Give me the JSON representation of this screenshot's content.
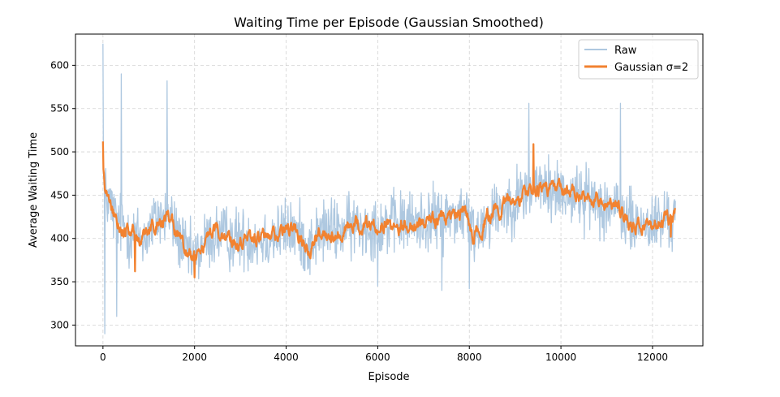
{
  "chart_data": {
    "type": "line",
    "title": "Waiting Time per Episode (Gaussian Smoothed)",
    "xlabel": "Episode",
    "ylabel": "Average Waiting Time",
    "xlim": [
      -600,
      13100
    ],
    "ylim": [
      276,
      636
    ],
    "xticks": [
      0,
      2000,
      4000,
      6000,
      8000,
      10000,
      12000
    ],
    "yticks": [
      300,
      350,
      400,
      450,
      500,
      550,
      600
    ],
    "grid": true,
    "legend_position": "top-right",
    "series": [
      {
        "name": "Raw",
        "color": "#aec8e0",
        "style": "thin-noisy",
        "anchor_x": [
          0,
          60,
          150,
          300,
          600,
          900,
          1200,
          1500,
          1800,
          2000,
          2200,
          2500,
          2800,
          3200,
          3600,
          4000,
          4300,
          4500,
          4800,
          5200,
          5600,
          6000,
          6500,
          7000,
          7500,
          7900,
          8100,
          8500,
          9000,
          9300,
          9500,
          9800,
          10000,
          10300,
          10700,
          11000,
          11300,
          11600,
          12000,
          12500
        ],
        "anchor_y": [
          480,
          450,
          440,
          420,
          405,
          400,
          425,
          420,
          385,
          375,
          395,
          405,
          400,
          400,
          400,
          410,
          405,
          390,
          410,
          410,
          415,
          415,
          418,
          420,
          425,
          430,
          405,
          430,
          445,
          455,
          460,
          455,
          455,
          450,
          445,
          440,
          430,
          415,
          415,
          425
        ],
        "noise_amplitude": 30,
        "extremes": [
          {
            "x": 0,
            "y": 625
          },
          {
            "x": 40,
            "y": 290
          },
          {
            "x": 300,
            "y": 310
          },
          {
            "x": 400,
            "y": 590
          },
          {
            "x": 1400,
            "y": 582
          },
          {
            "x": 6000,
            "y": 345
          },
          {
            "x": 7400,
            "y": 340
          },
          {
            "x": 8000,
            "y": 342
          },
          {
            "x": 9300,
            "y": 556
          },
          {
            "x": 11300,
            "y": 556
          }
        ]
      },
      {
        "name": "Gaussian σ=2",
        "color": "#f28230",
        "style": "thick-smoothed",
        "anchor_x": [
          0,
          60,
          150,
          300,
          600,
          900,
          1200,
          1500,
          1800,
          2000,
          2200,
          2500,
          2800,
          3200,
          3600,
          4000,
          4300,
          4500,
          4800,
          5200,
          5600,
          6000,
          6500,
          7000,
          7500,
          7900,
          8100,
          8500,
          9000,
          9300,
          9500,
          9800,
          10000,
          10300,
          10700,
          11000,
          11300,
          11600,
          12000,
          12500
        ],
        "anchor_y": [
          480,
          450,
          440,
          420,
          405,
          400,
          425,
          420,
          385,
          375,
          395,
          405,
          400,
          400,
          400,
          410,
          405,
          390,
          410,
          410,
          415,
          415,
          418,
          420,
          425,
          430,
          405,
          430,
          445,
          455,
          460,
          455,
          455,
          450,
          445,
          440,
          430,
          415,
          415,
          425
        ],
        "noise_amplitude": 12,
        "extremes": [
          {
            "x": 0,
            "y": 512
          },
          {
            "x": 700,
            "y": 362
          },
          {
            "x": 2000,
            "y": 355
          },
          {
            "x": 9400,
            "y": 509
          },
          {
            "x": 12400,
            "y": 402
          }
        ]
      }
    ]
  }
}
